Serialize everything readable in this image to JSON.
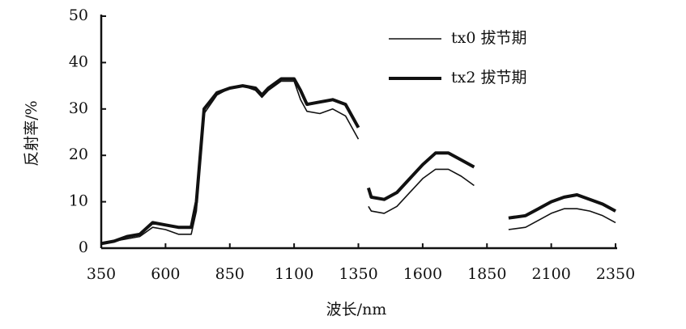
{
  "chart_data": {
    "type": "line",
    "x_label": "波长/nm",
    "y_label": "反射率/%",
    "x": [
      350,
      400,
      450,
      500,
      550,
      600,
      650,
      700,
      720,
      750,
      800,
      850,
      900,
      950,
      975,
      1000,
      1050,
      1100,
      1125,
      1150,
      1200,
      1250,
      1300,
      1350,
      1370,
      1389,
      1400,
      1450,
      1500,
      1550,
      1600,
      1650,
      1700,
      1750,
      1800,
      1870,
      1934,
      2000,
      2050,
      2100,
      2150,
      2200,
      2250,
      2300,
      2350
    ],
    "series": [
      {
        "name": "tx0 拔节期",
        "color": "#111111",
        "linewidth": 1.6,
        "values": [
          1,
          1.5,
          2,
          2.5,
          4.5,
          4,
          3,
          3,
          8,
          29,
          33,
          34.5,
          35,
          34,
          32.5,
          34,
          36,
          36,
          32,
          29.5,
          29,
          30,
          28.5,
          23.5,
          null,
          9,
          8,
          7.5,
          9,
          12,
          15,
          17,
          17,
          15.5,
          13.5,
          null,
          4,
          4.5,
          6,
          7.5,
          8.5,
          8.5,
          8,
          7,
          5.5
        ]
      },
      {
        "name": "tx2 拔节期",
        "color": "#111111",
        "linewidth": 4,
        "values": [
          1,
          1.5,
          2.5,
          3,
          5.5,
          5,
          4.5,
          4.5,
          10,
          30,
          33.5,
          34.5,
          35,
          34.5,
          33,
          34.5,
          36.5,
          36.5,
          34,
          31,
          31.5,
          32,
          31,
          26,
          null,
          13,
          11,
          10.5,
          12,
          15,
          18,
          20.5,
          20.5,
          19,
          17.5,
          null,
          6.5,
          7,
          8.5,
          10,
          11,
          11.5,
          10.5,
          9.5,
          8
        ]
      }
    ],
    "xlim": [
      350,
      2350
    ],
    "xticks": [
      350,
      600,
      850,
      1100,
      1350,
      1600,
      1850,
      2100,
      2350
    ],
    "ylim": [
      0,
      50
    ],
    "yticks": [
      0,
      10,
      20,
      30,
      40,
      50
    ],
    "legend": "upper-right",
    "grid": false
  }
}
